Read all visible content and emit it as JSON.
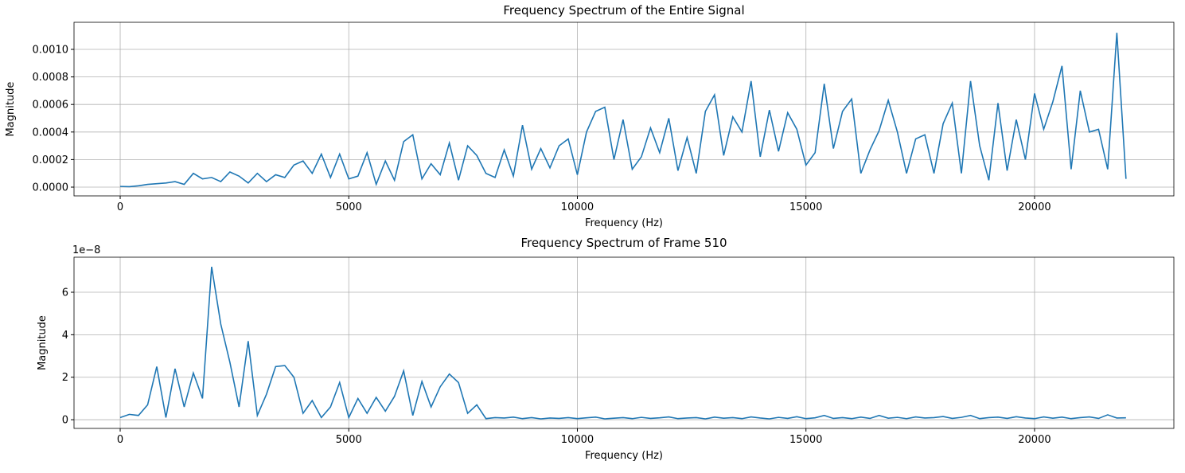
{
  "chart_data": [
    {
      "type": "line",
      "title": "Frequency Spectrum of the Entire Signal",
      "x_label": "Frequency (Hz)",
      "y_label": "Magnitude",
      "grid": true,
      "xlim": [
        -1010,
        23047
      ],
      "xticks": [
        0,
        5000,
        10000,
        15000,
        20000
      ],
      "ylim": [
        -6.36e-05,
        0.0011965
      ],
      "yticks": [
        {
          "value": 0,
          "label": "0.0000"
        },
        {
          "value": 0.0002,
          "label": "0.0002"
        },
        {
          "value": 0.0004,
          "label": "0.0004"
        },
        {
          "value": 0.0006,
          "label": "0.0006"
        },
        {
          "value": 0.0008,
          "label": "0.0008"
        },
        {
          "value": 0.001,
          "label": "0.0010"
        }
      ],
      "x": [
        0,
        200,
        400,
        600,
        800,
        1000,
        1200,
        1400,
        1600,
        1800,
        2000,
        2200,
        2400,
        2600,
        2800,
        3000,
        3200,
        3400,
        3600,
        3800,
        4000,
        4200,
        4400,
        4600,
        4800,
        5000,
        5200,
        5400,
        5600,
        5800,
        6000,
        6200,
        6400,
        6600,
        6800,
        7000,
        7200,
        7400,
        7600,
        7800,
        8000,
        8200,
        8400,
        8600,
        8800,
        9000,
        9200,
        9400,
        9600,
        9800,
        10000,
        10200,
        10400,
        10600,
        10800,
        11000,
        11200,
        11400,
        11600,
        11800,
        12000,
        12200,
        12400,
        12600,
        12800,
        13000,
        13200,
        13400,
        13600,
        13800,
        14000,
        14200,
        14400,
        14600,
        14800,
        15000,
        15200,
        15400,
        15600,
        15800,
        16000,
        16200,
        16400,
        16600,
        16800,
        17000,
        17200,
        17400,
        17600,
        17800,
        18000,
        18200,
        18400,
        18600,
        18800,
        19000,
        19200,
        19400,
        19600,
        19800,
        20000,
        20200,
        20400,
        20600,
        20800,
        21000,
        21200,
        21400,
        21600,
        21800,
        22000
      ],
      "series": [
        {
          "name": "Magnitude",
          "color": "#1f77b4",
          "values": [
            5e-06,
            3e-06,
            1e-05,
            2e-05,
            2.5e-05,
            3e-05,
            4e-05,
            2e-05,
            0.0001,
            6e-05,
            7e-05,
            4e-05,
            0.00011,
            8e-05,
            3e-05,
            0.0001,
            4e-05,
            9e-05,
            7e-05,
            0.00016,
            0.00019,
            0.0001,
            0.00024,
            7e-05,
            0.00024,
            6e-05,
            8e-05,
            0.00025,
            2e-05,
            0.00019,
            5e-05,
            0.00033,
            0.00038,
            6e-05,
            0.00017,
            9e-05,
            0.00032,
            5e-05,
            0.0003,
            0.00023,
            0.0001,
            7e-05,
            0.00027,
            8e-05,
            0.00045,
            0.00013,
            0.00028,
            0.00014,
            0.0003,
            0.00035,
            9e-05,
            0.0004,
            0.00055,
            0.00058,
            0.0002,
            0.00049,
            0.00013,
            0.00022,
            0.00043,
            0.00025,
            0.0005,
            0.00012,
            0.00036,
            0.0001,
            0.00055,
            0.00067,
            0.00023,
            0.00051,
            0.0004,
            0.00077,
            0.00022,
            0.00056,
            0.00026,
            0.00054,
            0.00042,
            0.00016,
            0.00025,
            0.00075,
            0.00028,
            0.00055,
            0.00064,
            0.0001,
            0.00027,
            0.00041,
            0.00063,
            0.0004,
            0.0001,
            0.00035,
            0.00038,
            0.0001,
            0.00046,
            0.00061,
            0.0001,
            0.00077,
            0.0003,
            5e-05,
            0.00061,
            0.00012,
            0.00049,
            0.0002,
            0.00068,
            0.00042,
            0.00062,
            0.00088,
            0.00013,
            0.0007,
            0.0004,
            0.00042,
            0.00013,
            0.00112,
            6e-05
          ]
        }
      ]
    },
    {
      "type": "line",
      "title": "Frequency Spectrum of Frame 510",
      "x_label": "Frequency (Hz)",
      "y_label": "Magnitude",
      "y_offset_label": "1e−8",
      "grid": true,
      "xlim": [
        -1010,
        23047
      ],
      "xticks": [
        0,
        5000,
        10000,
        15000,
        20000
      ],
      "ylim": [
        -4.1e-09,
        7.65e-08
      ],
      "yticks": [
        {
          "value": 0,
          "label": "0"
        },
        {
          "value": 2e-08,
          "label": "2"
        },
        {
          "value": 4e-08,
          "label": "4"
        },
        {
          "value": 6e-08,
          "label": "6"
        }
      ],
      "x": [
        0,
        200,
        400,
        600,
        800,
        1000,
        1200,
        1400,
        1600,
        1800,
        2000,
        2200,
        2400,
        2600,
        2800,
        3000,
        3200,
        3400,
        3600,
        3800,
        4000,
        4200,
        4400,
        4600,
        4800,
        5000,
        5200,
        5400,
        5600,
        5800,
        6000,
        6200,
        6400,
        6600,
        6800,
        7000,
        7200,
        7400,
        7600,
        7800,
        8000,
        8200,
        8400,
        8600,
        8800,
        9000,
        9200,
        9400,
        9600,
        9800,
        10000,
        10200,
        10400,
        10600,
        10800,
        11000,
        11200,
        11400,
        11600,
        11800,
        12000,
        12200,
        12400,
        12600,
        12800,
        13000,
        13200,
        13400,
        13600,
        13800,
        14000,
        14200,
        14400,
        14600,
        14800,
        15000,
        15200,
        15400,
        15600,
        15800,
        16000,
        16200,
        16400,
        16600,
        16800,
        17000,
        17200,
        17400,
        17600,
        17800,
        18000,
        18200,
        18400,
        18600,
        18800,
        19000,
        19200,
        19400,
        19600,
        19800,
        20000,
        20200,
        20400,
        20600,
        20800,
        21000,
        21200,
        21400,
        21600,
        21800,
        22000
      ],
      "series": [
        {
          "name": "Magnitude",
          "color": "#1f77b4",
          "values": [
            1e-09,
            2.5e-09,
            2e-09,
            7e-09,
            2.5e-08,
            1e-09,
            2.4e-08,
            6e-09,
            2.2e-08,
            1e-08,
            7.2e-08,
            4.5e-08,
            2.7e-08,
            6e-09,
            3.7e-08,
            2e-09,
            1.2e-08,
            2.5e-08,
            2.55e-08,
            2e-08,
            3e-09,
            9e-09,
            1e-09,
            6e-09,
            1.75e-08,
            1e-09,
            1e-08,
            3e-09,
            1.05e-08,
            4e-09,
            1.1e-08,
            2.3e-08,
            2e-09,
            1.8e-08,
            6e-09,
            1.55e-08,
            2.15e-08,
            1.75e-08,
            3e-09,
            7e-09,
            5e-10,
            1e-09,
            8e-10,
            1.2e-09,
            5e-10,
            1e-09,
            4e-10,
            8e-10,
            6e-10,
            1e-09,
            5e-10,
            9e-10,
            1.2e-09,
            4e-10,
            7e-10,
            1e-09,
            5e-10,
            1.1e-09,
            6e-10,
            9e-10,
            1.3e-09,
            5e-10,
            8e-10,
            1e-09,
            4e-10,
            1.2e-09,
            7e-10,
            1e-09,
            5e-10,
            1.3e-09,
            8e-10,
            4e-10,
            1.1e-09,
            6e-10,
            1.4e-09,
            5e-10,
            9e-10,
            2e-09,
            6e-10,
            1e-09,
            5e-10,
            1.2e-09,
            6e-10,
            2e-09,
            7e-10,
            1.1e-09,
            5e-10,
            1.3e-09,
            8e-10,
            1e-09,
            1.5e-09,
            6e-10,
            1.1e-09,
            2e-09,
            5e-10,
            1e-09,
            1.2e-09,
            6e-10,
            1.4e-09,
            8e-10,
            5e-10,
            1.3e-09,
            7e-10,
            1.2e-09,
            5e-10,
            1e-09,
            1.3e-09,
            6e-10,
            2.3e-09,
            8e-10,
            9e-10
          ]
        }
      ]
    }
  ]
}
